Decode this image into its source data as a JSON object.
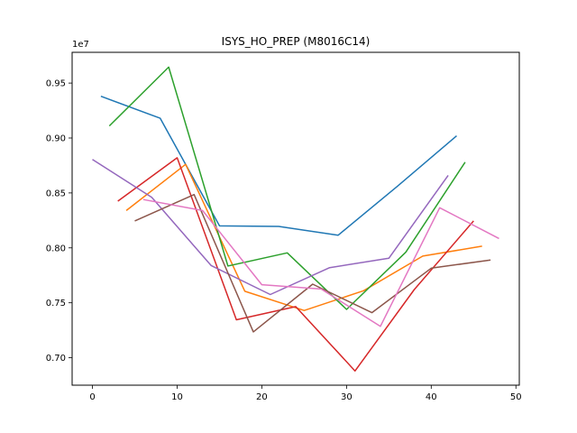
{
  "chart_data": {
    "type": "line",
    "title": "ISYS_HO_PREP (M8016C14)",
    "xlabel": "",
    "ylabel": "",
    "y_offset_label": "1e7",
    "xlim": [
      -2.4,
      50.4
    ],
    "ylim": [
      6750000.0,
      9780000.0
    ],
    "x_ticks": [
      0,
      10,
      20,
      30,
      40,
      50
    ],
    "x_tick_labels": [
      "0",
      "10",
      "20",
      "30",
      "40",
      "50"
    ],
    "y_ticks": [
      7000000.0,
      7500000.0,
      8000000.0,
      8500000.0,
      9000000.0,
      9500000.0
    ],
    "y_tick_labels": [
      "0.70",
      "0.75",
      "0.80",
      "0.85",
      "0.90",
      "0.95"
    ],
    "grid": false,
    "legend": "none",
    "series": [
      {
        "color": "#1f77b4",
        "x": [
          1,
          8,
          15,
          22,
          29,
          36,
          43
        ],
        "y": [
          9380000,
          9180000,
          8200000,
          8195000,
          8115000,
          8560000,
          9020000
        ]
      },
      {
        "color": "#ff7f0e",
        "x": [
          4,
          11,
          18,
          25,
          32,
          39,
          46
        ],
        "y": [
          8340000,
          8760000,
          7605000,
          7430000,
          7610000,
          7925000,
          8015000
        ]
      },
      {
        "color": "#2ca02c",
        "x": [
          2,
          9,
          16,
          23,
          30,
          37,
          44
        ],
        "y": [
          9110000,
          9645000,
          7835000,
          7955000,
          7440000,
          7960000,
          8780000
        ]
      },
      {
        "color": "#d62728",
        "x": [
          3,
          10,
          17,
          24,
          31,
          38,
          45
        ],
        "y": [
          8425000,
          8820000,
          7345000,
          7465000,
          6880000,
          7620000,
          8245000
        ]
      },
      {
        "color": "#9467bd",
        "x": [
          0,
          7,
          14,
          21,
          28,
          35,
          42
        ],
        "y": [
          8805000,
          8460000,
          7840000,
          7575000,
          7820000,
          7905000,
          8660000
        ]
      },
      {
        "color": "#8c564b",
        "x": [
          5,
          12,
          19,
          26,
          33,
          40,
          47
        ],
        "y": [
          8245000,
          8485000,
          7235000,
          7670000,
          7410000,
          7815000,
          7890000
        ]
      },
      {
        "color": "#e377c2",
        "x": [
          6,
          13,
          20,
          27,
          34,
          41,
          48
        ],
        "y": [
          8440000,
          8340000,
          7665000,
          7625000,
          7285000,
          8365000,
          8085000
        ]
      }
    ]
  }
}
